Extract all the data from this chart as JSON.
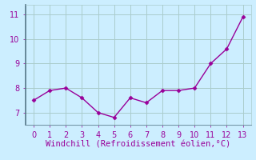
{
  "x": [
    0,
    1,
    2,
    3,
    4,
    5,
    6,
    7,
    8,
    9,
    10,
    11,
    12,
    13
  ],
  "y": [
    7.5,
    7.9,
    8.0,
    7.6,
    7.0,
    6.8,
    7.6,
    7.4,
    7.9,
    7.9,
    8.0,
    9.0,
    9.6,
    10.9
  ],
  "line_color": "#990099",
  "marker": "D",
  "marker_size": 2.5,
  "line_width": 1.0,
  "bg_color": "#cceeff",
  "grid_color": "#aacccc",
  "xlabel": "Windchill (Refroidissement éolien,°C)",
  "xlabel_color": "#990099",
  "xlabel_fontsize": 7.5,
  "ytick_labels": [
    "7",
    "8",
    "9",
    "10",
    "11"
  ],
  "ytick_vals": [
    7,
    8,
    9,
    10,
    11
  ],
  "xtick_vals": [
    0,
    1,
    2,
    3,
    4,
    5,
    6,
    7,
    8,
    9,
    10,
    11,
    12,
    13
  ],
  "xlim": [
    -0.5,
    13.5
  ],
  "ylim": [
    6.5,
    11.4
  ],
  "tick_color": "#990099",
  "tick_fontsize": 7,
  "spine_color": "#7799aa",
  "left_spine_color": "#557788"
}
